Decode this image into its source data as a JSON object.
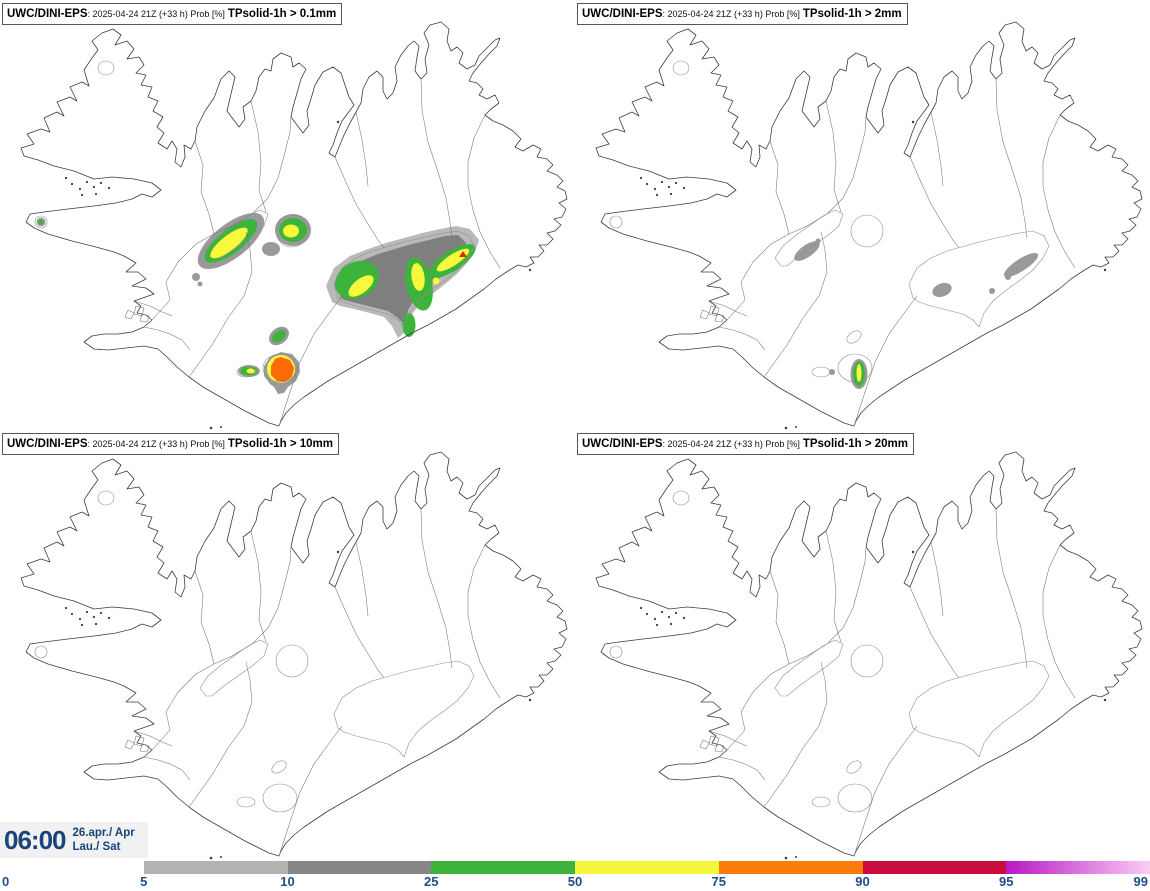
{
  "panels": [
    {
      "product": "UWC/DINI-EPS",
      "run": ": 2025-04-24 21Z (+33 h) Prob [%]",
      "threshold": "TPsolid-1h > 0.1mm"
    },
    {
      "product": "UWC/DINI-EPS",
      "run": ": 2025-04-24 21Z (+33 h) Prob [%]",
      "threshold": "TPsolid-1h > 2mm"
    },
    {
      "product": "UWC/DINI-EPS",
      "run": ": 2025-04-24 21Z (+33 h) Prob [%]",
      "threshold": "TPsolid-1h > 10mm"
    },
    {
      "product": "UWC/DINI-EPS",
      "run": ": 2025-04-24 21Z (+33 h) Prob [%]",
      "threshold": "TPsolid-1h > 20mm"
    }
  ],
  "footer": {
    "time": "06:00",
    "date_top": "26.apr./ Apr",
    "date_bottom": "Lau./ Sat"
  },
  "colorbar": {
    "tick_labels": [
      "0",
      "5",
      "10",
      "25",
      "50",
      "75",
      "90",
      "95",
      "99"
    ],
    "tick_color": "#1d4e89",
    "segments": [
      {
        "range": "5-10",
        "color": "#b3b3b3"
      },
      {
        "range": "10-25",
        "color": "#878787"
      },
      {
        "range": "25-50",
        "color": "#3cb43c"
      },
      {
        "range": "50-75",
        "color": "#f5f53b"
      },
      {
        "range": "75-90",
        "color": "#fb7c09"
      },
      {
        "range": "90-95",
        "color": "#c90b3f"
      },
      {
        "range": "95-99",
        "gradient": [
          "#b818c6",
          "#f9cdf5"
        ]
      }
    ],
    "blob_palette": {
      "prob_light_gray": "#b9b9b9",
      "prob_dark_gray": "#7f7f7f",
      "prob_ring_gray": "#9a9a9a",
      "prob_green": "#3cb43c",
      "prob_yellow": "#f8f83c",
      "prob_orange": "#fb6a07",
      "prob_red": "#dd2a00"
    }
  }
}
